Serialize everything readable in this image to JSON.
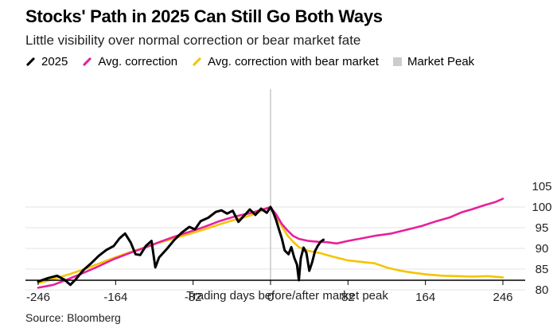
{
  "title": "Stocks' Path in 2025 Can Still Go Both Ways",
  "subtitle": "Little visibility over normal correction or bear market fate",
  "legend": [
    {
      "label": "2025",
      "color": "#000000",
      "kind": "line"
    },
    {
      "label": "Avg. correction",
      "color": "#e8209a",
      "kind": "line"
    },
    {
      "label": "Avg. correction with bear market",
      "color": "#f5c400",
      "kind": "line"
    },
    {
      "label": "Market Peak",
      "color": "#cccccc",
      "kind": "square"
    }
  ],
  "source": "Source: Bloomberg",
  "chart_data": {
    "type": "line",
    "xlabel": "Trading days before/after market peak",
    "ylabel": "",
    "xlim": [
      -246,
      246
    ],
    "ylim": [
      80,
      105
    ],
    "x_ticks": [
      -246,
      -164,
      -82,
      0,
      82,
      164,
      246
    ],
    "y_ticks": [
      80,
      85,
      90,
      95,
      100,
      105
    ],
    "grid": "horizontal",
    "y_axis_side": "right",
    "market_peak_x": 0,
    "series": [
      {
        "name": "2025",
        "color": "#000000",
        "points": [
          [
            -246,
            82
          ],
          [
            -236,
            82.8
          ],
          [
            -226,
            83.4
          ],
          [
            -218,
            82.4
          ],
          [
            -212,
            81.2
          ],
          [
            -206,
            82.6
          ],
          [
            -198,
            84.8
          ],
          [
            -190,
            86.4
          ],
          [
            -182,
            88.2
          ],
          [
            -174,
            89.6
          ],
          [
            -166,
            90.6
          ],
          [
            -160,
            92.4
          ],
          [
            -154,
            93.6
          ],
          [
            -148,
            91.4
          ],
          [
            -143,
            88.6
          ],
          [
            -138,
            88.4
          ],
          [
            -132,
            90.6
          ],
          [
            -126,
            91.8
          ],
          [
            -122,
            85.4
          ],
          [
            -118,
            87.8
          ],
          [
            -110,
            89.8
          ],
          [
            -102,
            92
          ],
          [
            -94,
            93.8
          ],
          [
            -86,
            95.2
          ],
          [
            -80,
            94.6
          ],
          [
            -74,
            96.6
          ],
          [
            -66,
            97.4
          ],
          [
            -58,
            98.8
          ],
          [
            -52,
            99.2
          ],
          [
            -46,
            98.4
          ],
          [
            -40,
            99.1
          ],
          [
            -34,
            96.4
          ],
          [
            -28,
            97.9
          ],
          [
            -22,
            99.4
          ],
          [
            -16,
            98.1
          ],
          [
            -10,
            99.6
          ],
          [
            -4,
            98.6
          ],
          [
            0,
            100
          ],
          [
            3,
            98.6
          ],
          [
            6,
            96.8
          ],
          [
            9,
            94.5
          ],
          [
            12,
            92.4
          ],
          [
            15,
            89.5
          ],
          [
            19,
            88.6
          ],
          [
            22,
            90.3
          ],
          [
            25,
            87.8
          ],
          [
            28,
            86.1
          ],
          [
            30,
            82.3
          ],
          [
            32,
            87.6
          ],
          [
            35,
            90.2
          ],
          [
            38,
            88.9
          ],
          [
            41,
            84.6
          ],
          [
            44,
            86.6
          ],
          [
            47,
            89.3
          ],
          [
            50,
            90.6
          ],
          [
            53,
            91.6
          ],
          [
            56,
            92.1
          ]
        ]
      },
      {
        "name": "Avg. correction",
        "color": "#e8209a",
        "points": [
          [
            -246,
            80.5
          ],
          [
            -230,
            81.2
          ],
          [
            -214,
            82.6
          ],
          [
            -198,
            84.1
          ],
          [
            -182,
            85.7
          ],
          [
            -166,
            87.4
          ],
          [
            -150,
            88.8
          ],
          [
            -134,
            90.1
          ],
          [
            -118,
            91.5
          ],
          [
            -102,
            92.8
          ],
          [
            -86,
            94
          ],
          [
            -70,
            95.2
          ],
          [
            -54,
            96.6
          ],
          [
            -38,
            97.7
          ],
          [
            -22,
            98.5
          ],
          [
            -8,
            99.4
          ],
          [
            0,
            100
          ],
          [
            6,
            98.2
          ],
          [
            12,
            95.9
          ],
          [
            18,
            94.3
          ],
          [
            24,
            93
          ],
          [
            30,
            92.3
          ],
          [
            40,
            91.8
          ],
          [
            50,
            91.6
          ],
          [
            60,
            91.5
          ],
          [
            70,
            91.2
          ],
          [
            82,
            91.8
          ],
          [
            96,
            92.4
          ],
          [
            112,
            93.1
          ],
          [
            128,
            93.6
          ],
          [
            144,
            94.5
          ],
          [
            160,
            95.4
          ],
          [
            176,
            96.6
          ],
          [
            190,
            97.5
          ],
          [
            202,
            98.7
          ],
          [
            214,
            99.5
          ],
          [
            226,
            100.4
          ],
          [
            238,
            101.2
          ],
          [
            246,
            102
          ]
        ]
      },
      {
        "name": "Avg. correction with bear market",
        "color": "#f5c400",
        "points": [
          [
            -246,
            81.6
          ],
          [
            -230,
            82.6
          ],
          [
            -214,
            83.7
          ],
          [
            -198,
            84.9
          ],
          [
            -182,
            86.3
          ],
          [
            -166,
            87.7
          ],
          [
            -150,
            89
          ],
          [
            -134,
            90.2
          ],
          [
            -118,
            91.4
          ],
          [
            -102,
            92.4
          ],
          [
            -86,
            93.5
          ],
          [
            -70,
            94.6
          ],
          [
            -54,
            95.8
          ],
          [
            -38,
            96.9
          ],
          [
            -22,
            97.9
          ],
          [
            -8,
            99.2
          ],
          [
            0,
            100
          ],
          [
            6,
            97.9
          ],
          [
            12,
            95.3
          ],
          [
            18,
            93.1
          ],
          [
            24,
            91.6
          ],
          [
            30,
            90.3
          ],
          [
            40,
            89.4
          ],
          [
            52,
            88.9
          ],
          [
            66,
            88
          ],
          [
            82,
            87.1
          ],
          [
            98,
            86.7
          ],
          [
            110,
            86.4
          ],
          [
            124,
            85.3
          ],
          [
            138,
            84.6
          ],
          [
            152,
            84.1
          ],
          [
            166,
            83.7
          ],
          [
            182,
            83.4
          ],
          [
            198,
            83.3
          ],
          [
            214,
            83.2
          ],
          [
            230,
            83.3
          ],
          [
            246,
            83
          ]
        ]
      }
    ]
  }
}
